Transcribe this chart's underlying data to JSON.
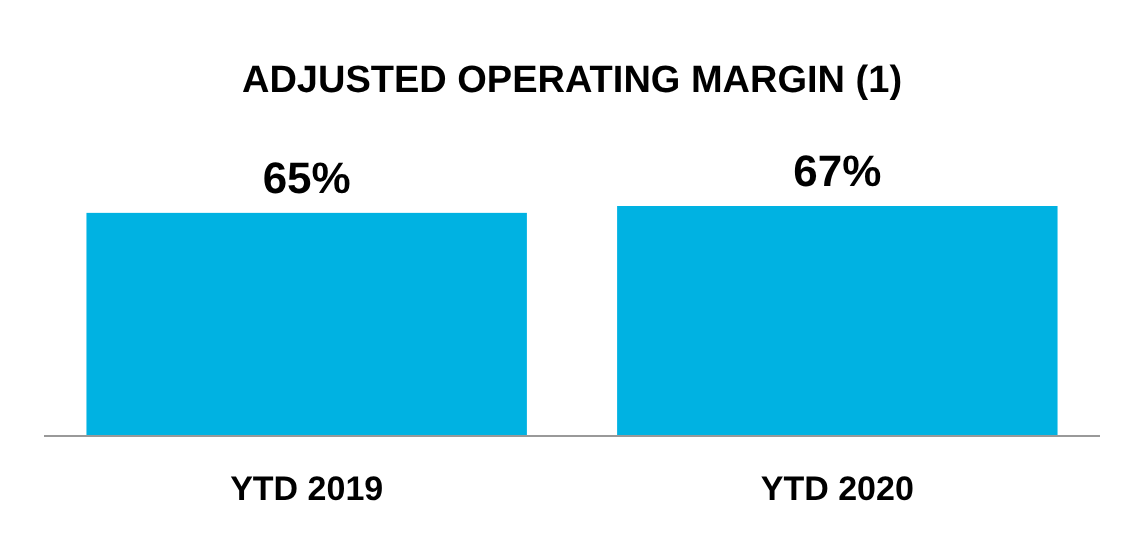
{
  "chart_data": {
    "type": "bar",
    "title": "ADJUSTED OPERATING MARGIN (1)",
    "categories": [
      "YTD 2019",
      "YTD 2020"
    ],
    "values": [
      65,
      67
    ],
    "color": "#00b2e2",
    "value_labels": [
      "65%",
      "67%"
    ]
  }
}
